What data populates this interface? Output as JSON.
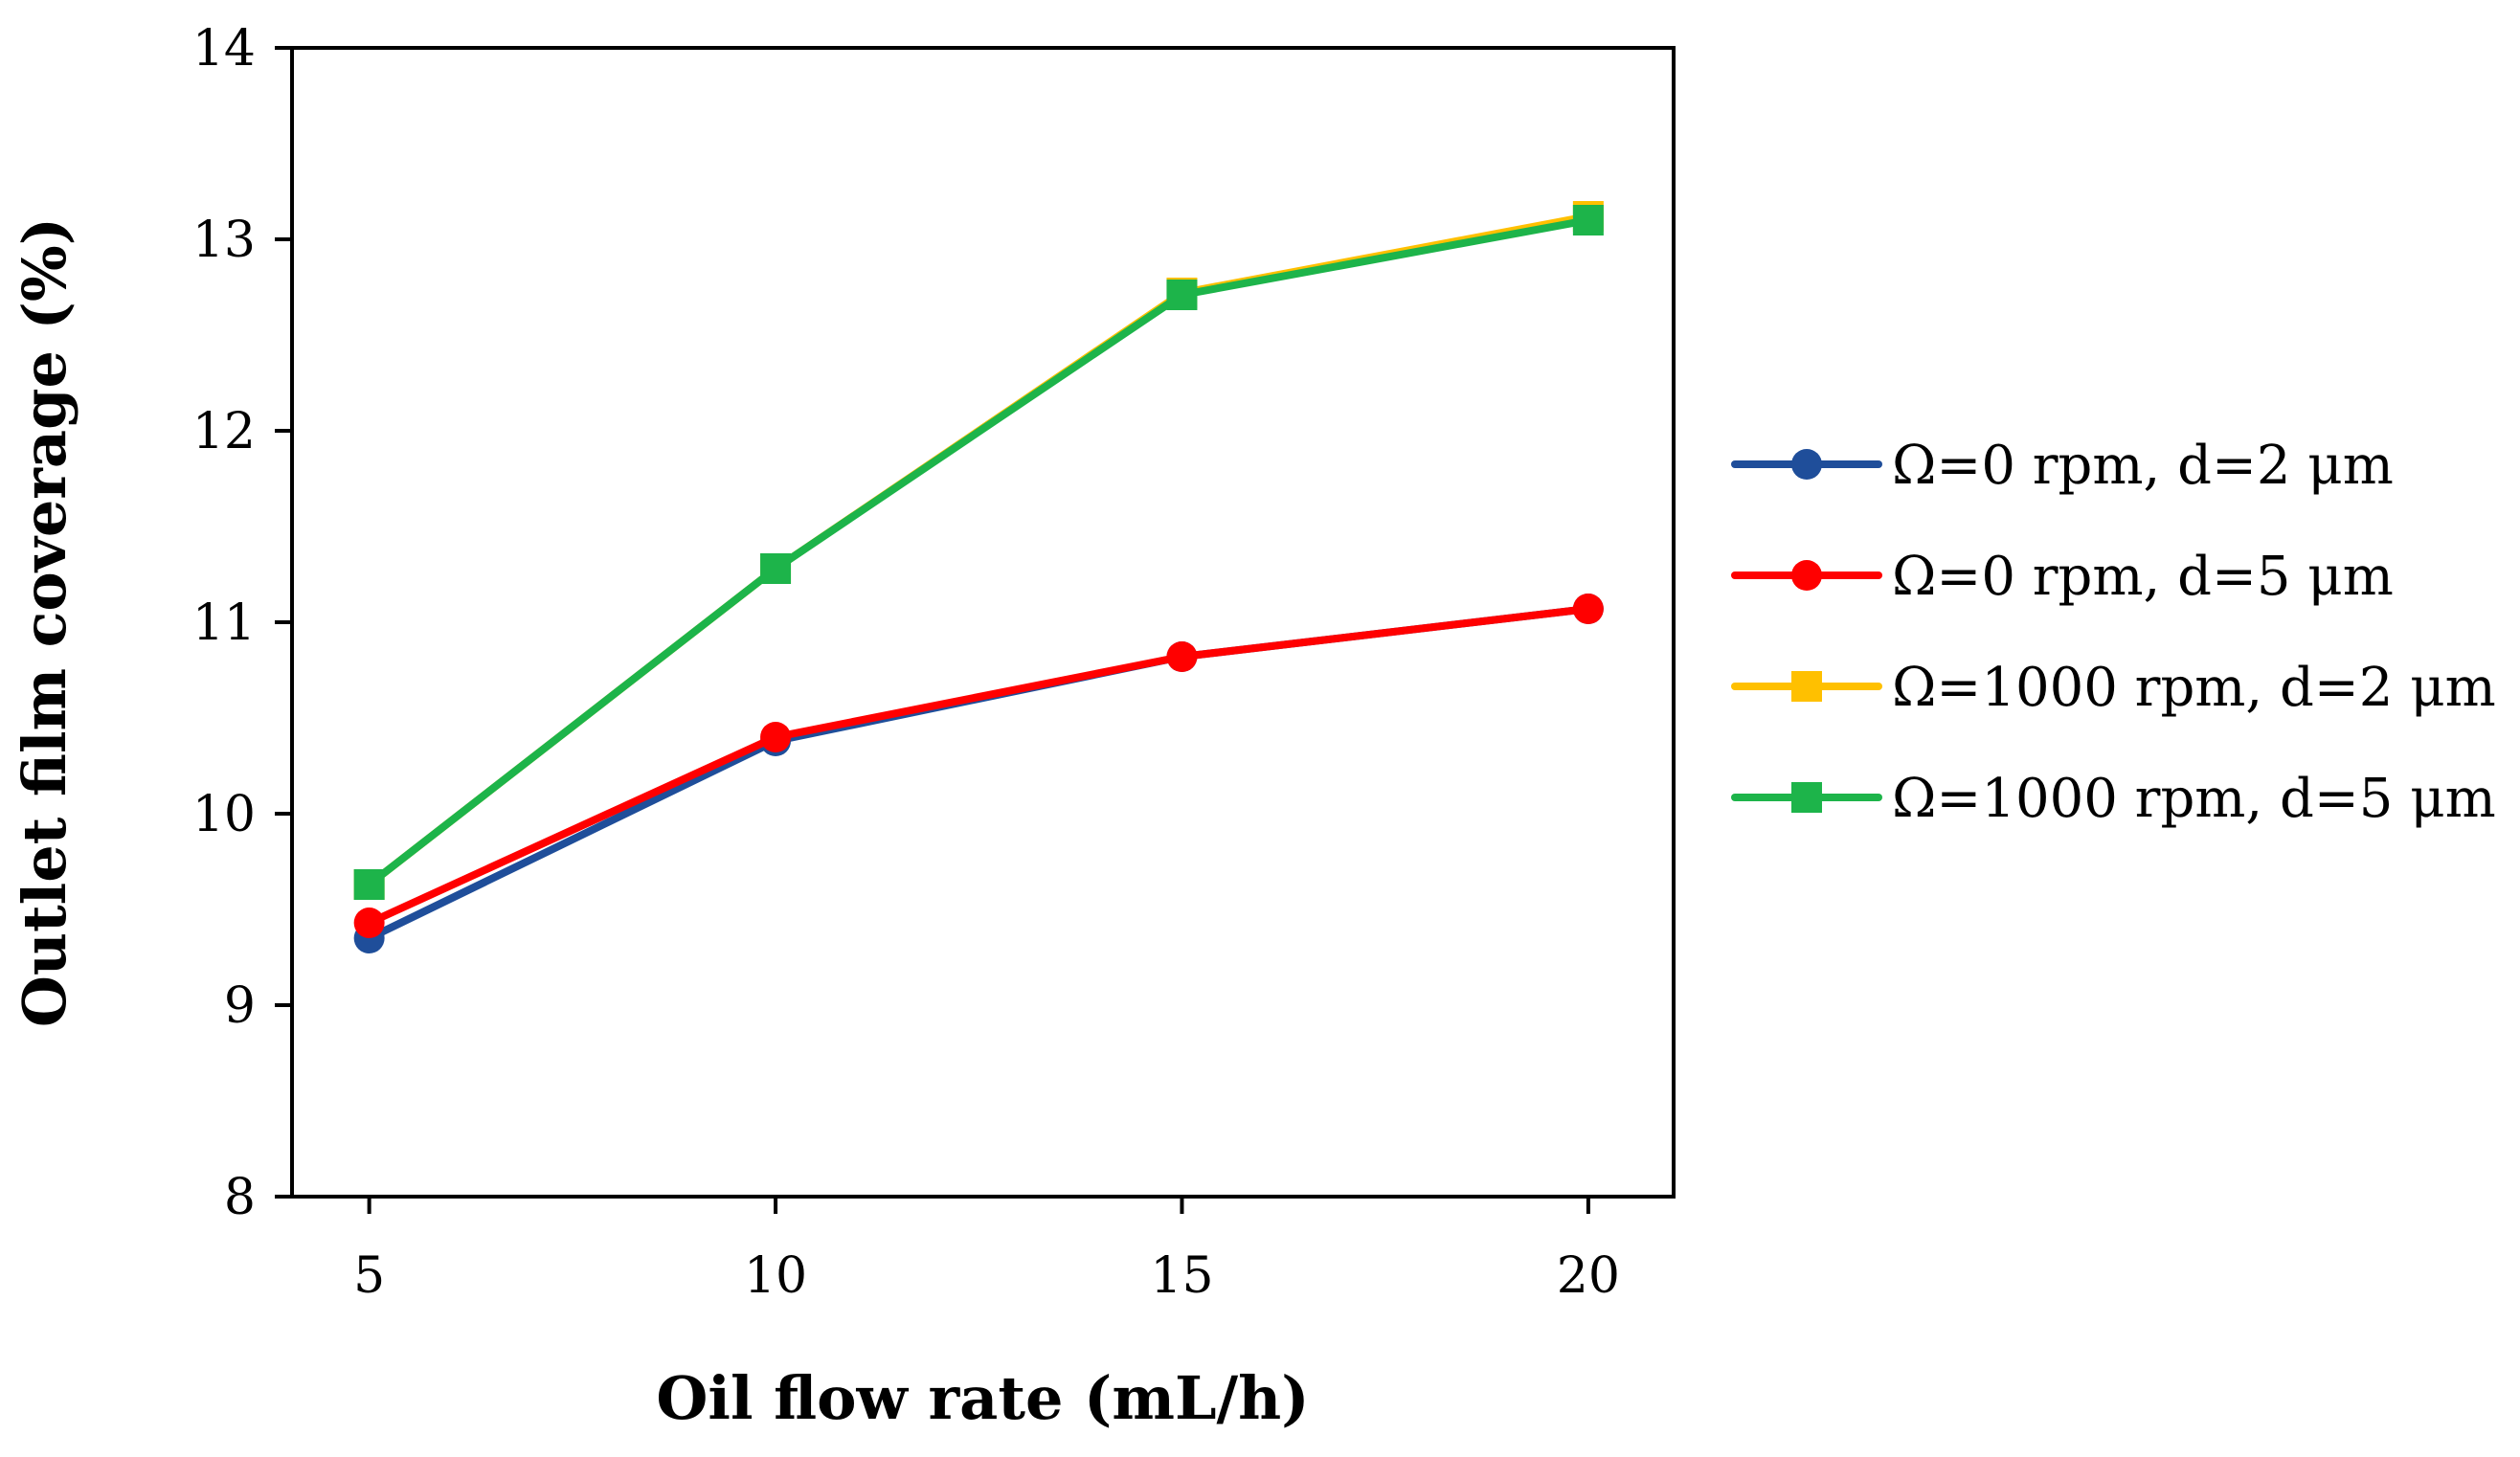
{
  "chart_data": {
    "type": "line",
    "title": "",
    "xlabel": "Oil flow rate (mL/h)",
    "ylabel": "Outlet film coverage (%)",
    "x": [
      5,
      10,
      15,
      20
    ],
    "xlim": [
      4.05,
      21.05
    ],
    "ylim": [
      8,
      14
    ],
    "xticks": [
      "5",
      "10",
      "15",
      "20"
    ],
    "yticks": [
      "8",
      "9",
      "10",
      "11",
      "12",
      "13",
      "14"
    ],
    "grid": false,
    "legend_position": "right",
    "series": [
      {
        "name": "Ω=0 rpm, d=2 μm",
        "color": "#1f4e9a",
        "marker": "circle",
        "values": [
          9.35,
          10.38,
          10.82,
          11.07
        ]
      },
      {
        "name": "Ω=0 rpm, d=5 μm",
        "color": "#ff0000",
        "marker": "circle",
        "values": [
          9.43,
          10.4,
          10.82,
          11.07
        ]
      },
      {
        "name": "Ω=1000 rpm, d=2 μm",
        "color": "#ffc000",
        "marker": "square",
        "values": [
          9.63,
          11.28,
          12.72,
          13.12
        ]
      },
      {
        "name": "Ω=1000 rpm, d=5 μm",
        "color": "#1db44a",
        "marker": "square",
        "values": [
          9.63,
          11.28,
          12.71,
          13.1
        ]
      }
    ]
  }
}
